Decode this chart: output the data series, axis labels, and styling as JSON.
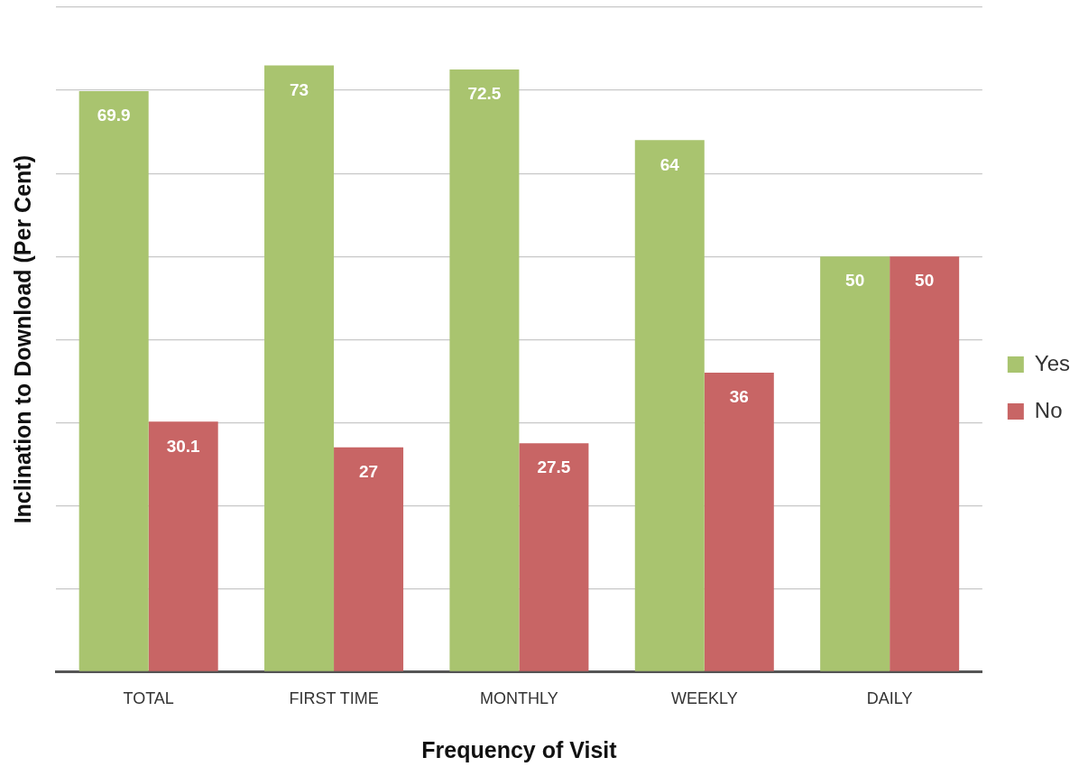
{
  "chart_data": {
    "type": "bar",
    "xlabel": "Frequency of Visit",
    "ylabel": "Inclination to Download (Per Cent)",
    "categories": [
      "TOTAL",
      "FIRST TIME",
      "MONTHLY",
      "WEEKLY",
      "DAILY"
    ],
    "series": [
      {
        "name": "Yes",
        "color": "#a9c46f",
        "values": [
          69.9,
          73,
          72.5,
          64,
          50
        ]
      },
      {
        "name": "No",
        "color": "#c86565",
        "values": [
          30.1,
          27,
          27.5,
          36,
          50
        ]
      }
    ],
    "ylim": [
      0,
      80
    ],
    "yticks": [
      {
        "value": 0,
        "label": null
      },
      {
        "value": 10,
        "label": null
      },
      {
        "value": 20,
        "label": null
      },
      {
        "value": 30,
        "label": null
      },
      {
        "value": 40,
        "label": null
      },
      {
        "value": 50,
        "label": null
      },
      {
        "value": 60,
        "label": null
      },
      {
        "value": 70,
        "label": null
      },
      {
        "value": 80,
        "label": null
      }
    ],
    "grid": "y",
    "legend": "right",
    "data_labels": true
  }
}
